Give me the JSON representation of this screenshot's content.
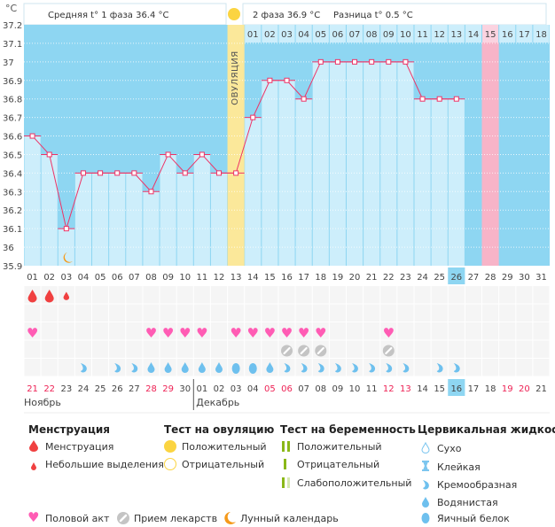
{
  "header": {
    "unit": "°C",
    "phase1": "Средняя t° 1 фаза 36.4 °C",
    "phase2": "2 фаза 36.9 °C",
    "diff": "Разница t° 0.5 °C",
    "ovulation_label": "ОВУЛЯЦИЯ"
  },
  "colors": {
    "plot_bg": "#8ed6f2",
    "bar": "#cdeefb",
    "line": "#ee3366",
    "ovulation": "#fbe89a",
    "highlight": "#f7b4c8",
    "weekend": "#ee2255",
    "today": "#8ed6f2"
  },
  "chart_data": {
    "type": "bar",
    "ylabel": "°C",
    "ylim": [
      35.9,
      37.2
    ],
    "yticks": [
      "37.2",
      "37.1",
      "37",
      "36.9",
      "36.8",
      "36.7",
      "36.6",
      "36.5",
      "36.4",
      "36.3",
      "36.2",
      "36.1",
      "36",
      "35.9"
    ],
    "cycle_days": [
      "01",
      "02",
      "03",
      "04",
      "05",
      "06",
      "07",
      "08",
      "09",
      "10",
      "11",
      "12",
      "13",
      "14",
      "15",
      "16",
      "17",
      "18",
      "19",
      "20",
      "21",
      "22",
      "23",
      "24",
      "25",
      "26",
      "27",
      "28",
      "29",
      "30",
      "31"
    ],
    "temperatures": [
      36.6,
      36.5,
      36.1,
      36.4,
      36.4,
      36.4,
      36.4,
      36.3,
      36.5,
      36.4,
      36.5,
      36.4,
      36.4,
      36.7,
      36.9,
      36.9,
      36.8,
      37.0,
      37.0,
      37.0,
      37.0,
      37.0,
      37.0,
      36.8,
      36.8,
      36.8
    ],
    "ovulation_day": 13,
    "current_cycle_day": 26,
    "phase2_days": [
      "01",
      "02",
      "03",
      "04",
      "05",
      "06",
      "07",
      "08",
      "09",
      "10",
      "11",
      "12",
      "13",
      "14",
      "15",
      "16",
      "17",
      "18"
    ],
    "phase2_highlight": "15"
  },
  "dates": [
    "21",
    "22",
    "23",
    "24",
    "25",
    "26",
    "27",
    "28",
    "29",
    "30",
    "01",
    "02",
    "03",
    "04",
    "05",
    "06",
    "07",
    "08",
    "09",
    "10",
    "11",
    "12",
    "13",
    "14",
    "15",
    "16",
    "17",
    "18",
    "19",
    "20",
    "21"
  ],
  "weekend_dates": [
    0,
    1,
    7,
    8,
    14,
    15,
    21,
    22,
    28,
    29
  ],
  "today_index": 25,
  "months": [
    "Ноябрь",
    "Декабрь"
  ],
  "markers": {
    "menstruation": {
      "1": "heavy",
      "2": "heavy",
      "3": "light"
    },
    "moon_day": 3,
    "intercourse": [
      1,
      8,
      9,
      10,
      11,
      13,
      14,
      15,
      16,
      17,
      18,
      22
    ],
    "medication": [
      16,
      17,
      18,
      22
    ],
    "fluid": {
      "4": "creamy",
      "6": "creamy",
      "7": "creamy",
      "8": "watery",
      "9": "watery",
      "10": "watery",
      "11": "watery",
      "12": "watery",
      "13": "eggwhite",
      "14": "eggwhite",
      "15": "watery",
      "16": "creamy",
      "17": "creamy",
      "18": "creamy",
      "19": "creamy",
      "20": "creamy",
      "21": "creamy",
      "22": "creamy",
      "23": "creamy",
      "25": "creamy",
      "26": "creamy"
    }
  },
  "legend": {
    "menstruation": {
      "title": "Менструация",
      "items": [
        "Менструация",
        "Небольшие выделения"
      ]
    },
    "ovulation_test": {
      "title": "Тест на овуляцию",
      "items": [
        "Положительный",
        "Отрицательный"
      ]
    },
    "pregnancy_test": {
      "title": "Тест на беременность",
      "items": [
        "Положительный",
        "Отрицательный",
        "Слабоположительный"
      ]
    },
    "fluid": {
      "title": "Цервикальная жидкость",
      "items": [
        "Сухо",
        "Клейкая",
        "Кремообразная",
        "Водянистая",
        "Яичный белок"
      ]
    },
    "other": [
      "Половой акт",
      "Прием лекарств",
      "Лунный календарь"
    ]
  }
}
